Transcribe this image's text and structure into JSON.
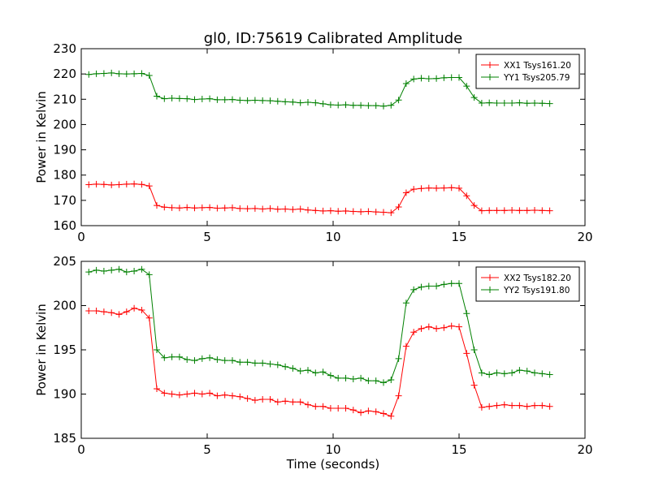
{
  "title": "gl0, ID:75619 Calibrated Amplitude",
  "chart_data": [
    {
      "type": "line",
      "title": "gl0, ID:75619 Calibrated Amplitude",
      "xlabel": "",
      "ylabel": "Power in Kelvin",
      "xlim": [
        0,
        20
      ],
      "ylim": [
        160,
        230
      ],
      "xticks": [
        0,
        5,
        10,
        15,
        20
      ],
      "yticks": [
        160,
        170,
        180,
        190,
        200,
        210,
        220,
        230
      ],
      "grid": false,
      "legend_position": "top-right",
      "marker": "+",
      "series": [
        {
          "name": "XX1 Tsys161.20",
          "color": "#ff0000",
          "x": [
            0.3,
            0.6,
            0.9,
            1.2,
            1.5,
            1.8,
            2.1,
            2.4,
            2.7,
            3.0,
            3.3,
            3.6,
            3.9,
            4.2,
            4.5,
            4.8,
            5.1,
            5.4,
            5.7,
            6.0,
            6.3,
            6.6,
            6.9,
            7.2,
            7.5,
            7.8,
            8.1,
            8.4,
            8.7,
            9.0,
            9.3,
            9.6,
            9.9,
            10.2,
            10.5,
            10.8,
            11.1,
            11.4,
            11.7,
            12.0,
            12.3,
            12.6,
            12.9,
            13.2,
            13.5,
            13.8,
            14.1,
            14.4,
            14.7,
            15.0,
            15.3,
            15.6,
            15.9,
            16.2,
            16.5,
            16.8,
            17.1,
            17.4,
            17.7,
            18.0,
            18.3,
            18.6
          ],
          "y": [
            176.2,
            176.4,
            176.3,
            176.1,
            176.2,
            176.4,
            176.5,
            176.3,
            175.7,
            168.0,
            167.3,
            167.1,
            167.0,
            167.2,
            167.0,
            167.1,
            167.2,
            166.9,
            167.0,
            167.1,
            166.8,
            166.7,
            166.8,
            166.6,
            166.8,
            166.5,
            166.6,
            166.4,
            166.6,
            166.2,
            166.0,
            165.8,
            165.9,
            165.7,
            165.8,
            165.6,
            165.5,
            165.6,
            165.4,
            165.3,
            165.1,
            167.4,
            173.0,
            174.4,
            174.7,
            174.9,
            174.8,
            174.9,
            175.0,
            174.8,
            171.8,
            168.0,
            165.9,
            166.0,
            166.0,
            166.0,
            166.1,
            166.0,
            166.0,
            166.1,
            166.0,
            165.9
          ]
        },
        {
          "name": "YY1 Tsys205.79",
          "color": "#008000",
          "x": [
            0.3,
            0.6,
            0.9,
            1.2,
            1.5,
            1.8,
            2.1,
            2.4,
            2.7,
            3.0,
            3.3,
            3.6,
            3.9,
            4.2,
            4.5,
            4.8,
            5.1,
            5.4,
            5.7,
            6.0,
            6.3,
            6.6,
            6.9,
            7.2,
            7.5,
            7.8,
            8.1,
            8.4,
            8.7,
            9.0,
            9.3,
            9.6,
            9.9,
            10.2,
            10.5,
            10.8,
            11.1,
            11.4,
            11.7,
            12.0,
            12.3,
            12.6,
            12.9,
            13.2,
            13.5,
            13.8,
            14.1,
            14.4,
            14.7,
            15.0,
            15.3,
            15.6,
            15.9,
            16.2,
            16.5,
            16.8,
            17.1,
            17.4,
            17.7,
            18.0,
            18.3,
            18.6
          ],
          "y": [
            219.8,
            220.1,
            220.2,
            220.4,
            220.1,
            220.0,
            220.1,
            220.2,
            219.4,
            211.2,
            210.2,
            210.4,
            210.3,
            210.2,
            209.9,
            210.1,
            210.2,
            209.8,
            209.8,
            209.9,
            209.6,
            209.5,
            209.6,
            209.5,
            209.4,
            209.2,
            209.0,
            208.9,
            208.6,
            208.8,
            208.6,
            208.2,
            207.8,
            207.7,
            207.8,
            207.6,
            207.6,
            207.5,
            207.5,
            207.3,
            207.6,
            209.7,
            216.2,
            218.0,
            218.3,
            218.1,
            218.2,
            218.5,
            218.6,
            218.6,
            215.2,
            210.7,
            208.5,
            208.6,
            208.5,
            208.5,
            208.5,
            208.6,
            208.4,
            208.5,
            208.4,
            208.3
          ]
        }
      ]
    },
    {
      "type": "line",
      "title": "",
      "xlabel": "Time (seconds)",
      "ylabel": "Power in Kelvin",
      "xlim": [
        0,
        20
      ],
      "ylim": [
        185,
        205
      ],
      "xticks": [
        0,
        5,
        10,
        15,
        20
      ],
      "yticks": [
        185,
        190,
        195,
        200,
        205
      ],
      "grid": false,
      "legend_position": "top-right",
      "marker": "+",
      "series": [
        {
          "name": "XX2 Tsys182.20",
          "color": "#ff0000",
          "x": [
            0.3,
            0.6,
            0.9,
            1.2,
            1.5,
            1.8,
            2.1,
            2.4,
            2.7,
            3.0,
            3.3,
            3.6,
            3.9,
            4.2,
            4.5,
            4.8,
            5.1,
            5.4,
            5.7,
            6.0,
            6.3,
            6.6,
            6.9,
            7.2,
            7.5,
            7.8,
            8.1,
            8.4,
            8.7,
            9.0,
            9.3,
            9.6,
            9.9,
            10.2,
            10.5,
            10.8,
            11.1,
            11.4,
            11.7,
            12.0,
            12.3,
            12.6,
            12.9,
            13.2,
            13.5,
            13.8,
            14.1,
            14.4,
            14.7,
            15.0,
            15.3,
            15.6,
            15.9,
            16.2,
            16.5,
            16.8,
            17.1,
            17.4,
            17.7,
            18.0,
            18.3,
            18.6
          ],
          "y": [
            199.4,
            199.4,
            199.3,
            199.2,
            199.0,
            199.3,
            199.7,
            199.5,
            198.6,
            190.6,
            190.1,
            190.0,
            189.9,
            190.0,
            190.1,
            190.0,
            190.1,
            189.8,
            189.9,
            189.8,
            189.7,
            189.5,
            189.3,
            189.4,
            189.4,
            189.1,
            189.2,
            189.1,
            189.1,
            188.8,
            188.6,
            188.6,
            188.4,
            188.4,
            188.4,
            188.2,
            187.9,
            188.1,
            188.0,
            187.8,
            187.5,
            189.8,
            195.4,
            197.0,
            197.4,
            197.6,
            197.4,
            197.5,
            197.7,
            197.6,
            194.6,
            191.0,
            188.5,
            188.6,
            188.7,
            188.8,
            188.7,
            188.7,
            188.6,
            188.7,
            188.7,
            188.6
          ]
        },
        {
          "name": "YY2 Tsys191.80",
          "color": "#008000",
          "x": [
            0.3,
            0.6,
            0.9,
            1.2,
            1.5,
            1.8,
            2.1,
            2.4,
            2.7,
            3.0,
            3.3,
            3.6,
            3.9,
            4.2,
            4.5,
            4.8,
            5.1,
            5.4,
            5.7,
            6.0,
            6.3,
            6.6,
            6.9,
            7.2,
            7.5,
            7.8,
            8.1,
            8.4,
            8.7,
            9.0,
            9.3,
            9.6,
            9.9,
            10.2,
            10.5,
            10.8,
            11.1,
            11.4,
            11.7,
            12.0,
            12.3,
            12.6,
            12.9,
            13.2,
            13.5,
            13.8,
            14.1,
            14.4,
            14.7,
            15.0,
            15.3,
            15.6,
            15.9,
            16.2,
            16.5,
            16.8,
            17.1,
            17.4,
            17.7,
            18.0,
            18.3,
            18.6
          ],
          "y": [
            203.8,
            204.0,
            203.9,
            204.0,
            204.1,
            203.8,
            203.9,
            204.1,
            203.5,
            195.0,
            194.1,
            194.2,
            194.2,
            193.9,
            193.8,
            194.0,
            194.1,
            193.9,
            193.8,
            193.8,
            193.6,
            193.6,
            193.5,
            193.5,
            193.4,
            193.3,
            193.1,
            192.9,
            192.6,
            192.7,
            192.4,
            192.5,
            192.1,
            191.8,
            191.8,
            191.7,
            191.8,
            191.5,
            191.5,
            191.3,
            191.6,
            194.0,
            200.3,
            201.8,
            202.1,
            202.2,
            202.2,
            202.4,
            202.5,
            202.5,
            199.1,
            195.0,
            192.4,
            192.2,
            192.4,
            192.3,
            192.4,
            192.7,
            192.6,
            192.4,
            192.3,
            192.2
          ]
        }
      ]
    }
  ]
}
